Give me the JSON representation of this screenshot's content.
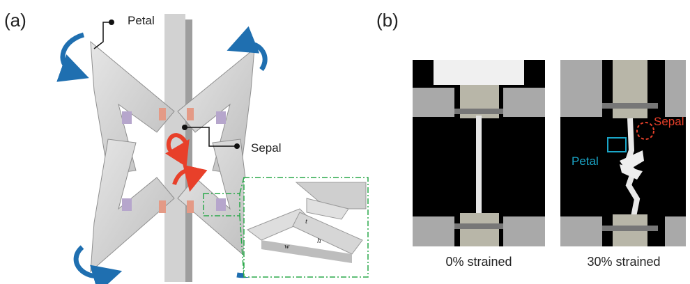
{
  "panel_a": {
    "label": "(a)",
    "petal_label": "Petal",
    "sepal_label": "Sepal",
    "inset_t": "t",
    "inset_h": "h",
    "inset_w": "w"
  },
  "panel_b": {
    "label": "(b)",
    "photo_left_caption": "0% strained",
    "photo_right_caption": "30% strained",
    "petal_label": "Petal",
    "sepal_label": "Sepal"
  },
  "colors": {
    "arrow_blue": "#1f6fb0",
    "arrow_red": "#e8402a",
    "inset_green": "#2aa84a",
    "petal_box_cyan": "#1aa6c8",
    "sepal_circle_red": "#e8402a",
    "structure_gray": "#c9c9c9"
  }
}
